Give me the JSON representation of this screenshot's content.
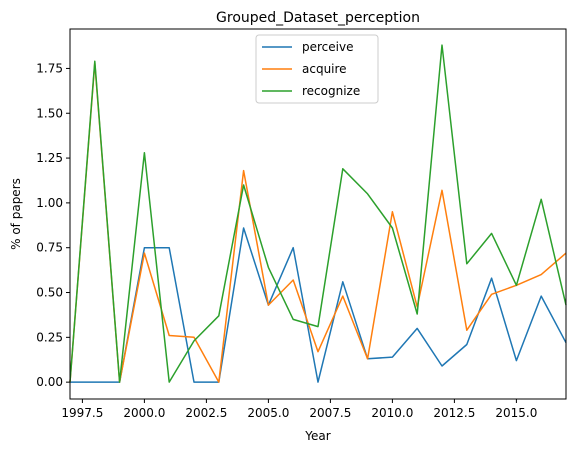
{
  "chart_data": {
    "type": "line",
    "title": "Grouped_Dataset_perception",
    "xlabel": "Year",
    "ylabel": "% of papers",
    "xlim": [
      1997,
      2017
    ],
    "ylim": [
      -0.094,
      1.97
    ],
    "x_ticks": [
      1997.5,
      2000.0,
      2002.5,
      2005.0,
      2007.5,
      2010.0,
      2012.5,
      2015.0
    ],
    "x_tick_labels": [
      "1997.5",
      "2000.0",
      "2002.5",
      "2005.0",
      "2007.5",
      "2010.0",
      "2012.5",
      "2015.0"
    ],
    "y_ticks": [
      0.0,
      0.25,
      0.5,
      0.75,
      1.0,
      1.25,
      1.5,
      1.75
    ],
    "y_tick_labels": [
      "0.00",
      "0.25",
      "0.50",
      "0.75",
      "1.00",
      "1.25",
      "1.50",
      "1.75"
    ],
    "x": [
      1997,
      1998,
      1999,
      2000,
      2001,
      2002,
      2003,
      2004,
      2005,
      2006,
      2007,
      2008,
      2009,
      2010,
      2011,
      2012,
      2013,
      2014,
      2015,
      2016,
      2017
    ],
    "series": [
      {
        "name": "perceive",
        "color": "#1f77b4",
        "values": [
          0.0,
          0.0,
          0.0,
          0.75,
          0.75,
          0.0,
          0.0,
          0.86,
          0.43,
          0.75,
          0.0,
          0.56,
          0.13,
          0.14,
          0.3,
          0.09,
          0.21,
          0.58,
          0.12,
          0.48,
          0.22
        ]
      },
      {
        "name": "acquire",
        "color": "#ff7f0e",
        "values": [
          0.0,
          1.78,
          0.0,
          0.72,
          0.26,
          0.25,
          0.0,
          1.18,
          0.43,
          0.57,
          0.17,
          0.48,
          0.13,
          0.95,
          0.42,
          1.07,
          0.29,
          0.49,
          0.54,
          0.6,
          0.72
        ]
      },
      {
        "name": "recognize",
        "color": "#2ca02c",
        "values": [
          0.0,
          1.79,
          0.0,
          1.28,
          0.0,
          0.23,
          0.37,
          1.1,
          0.64,
          0.35,
          0.31,
          1.19,
          1.05,
          0.86,
          0.38,
          1.88,
          0.66,
          0.83,
          0.54,
          1.02,
          0.43
        ]
      }
    ],
    "legend_position": "upper-center",
    "grid": false
  }
}
